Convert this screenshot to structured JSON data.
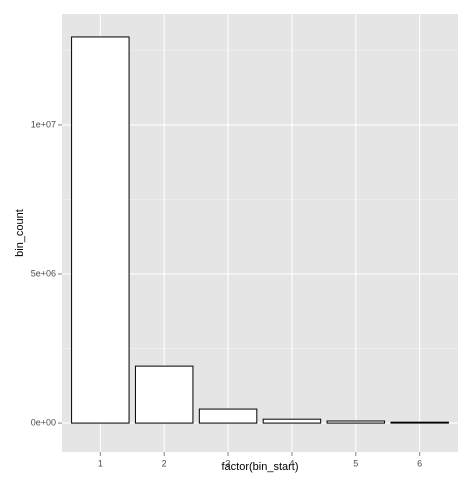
{
  "chart_data": {
    "type": "bar",
    "x_label": "factor(bin_start)",
    "y_label": "bin_count",
    "categories": [
      "1",
      "2",
      "3",
      "4",
      "5",
      "6"
    ],
    "values": [
      12950000,
      1910000,
      470000,
      130000,
      70000,
      30000
    ],
    "color": "#ffffff",
    "edge_color": "#000000",
    "ylim": [
      -970000,
      13720000
    ],
    "yticks": [
      {
        "value": 0,
        "label": "0e+00"
      },
      {
        "value": 5000000,
        "label": "5e+06"
      },
      {
        "value": 10000000,
        "label": "1e+07"
      }
    ],
    "y_minor_ticks": [
      2500000,
      7500000,
      12500000
    ],
    "grid": true,
    "panel_color": "#e5e5e5"
  }
}
